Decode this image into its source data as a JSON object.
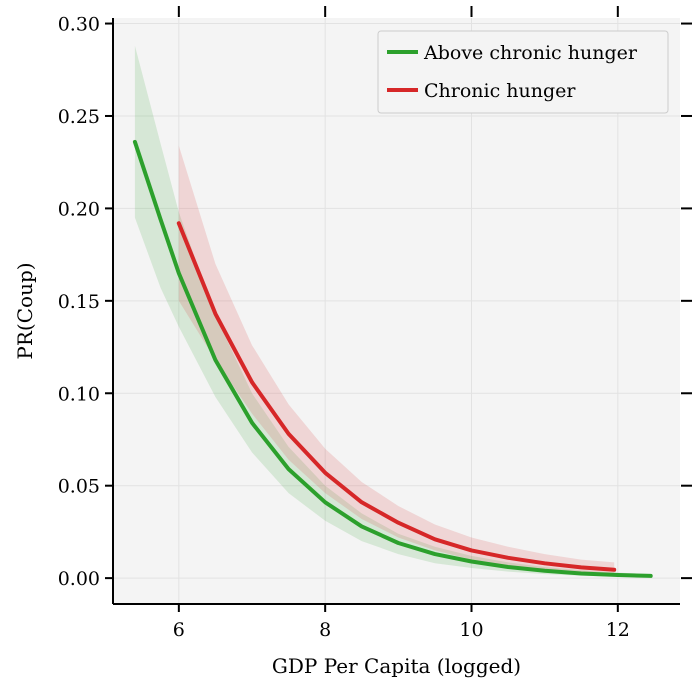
{
  "chart_data": {
    "type": "line",
    "xlabel": "GDP Per Capita (logged)",
    "ylabel": "PR(Coup)",
    "xlim": [
      5.1,
      12.85
    ],
    "ylim": [
      -0.014,
      0.303
    ],
    "xticks": [
      6,
      8,
      10,
      12
    ],
    "yticks": [
      0.0,
      0.05,
      0.1,
      0.15,
      0.2,
      0.25,
      0.3
    ],
    "xtick_labels": [
      "6",
      "8",
      "10",
      "12"
    ],
    "ytick_labels": [
      "0.00",
      "0.05",
      "0.10",
      "0.15",
      "0.20",
      "0.25",
      "0.30"
    ],
    "grid": true,
    "legend_position": "upper-right",
    "series": [
      {
        "name": "Above chronic hunger",
        "color": "#2ca02c",
        "x": [
          5.4,
          5.75,
          6.0,
          6.5,
          7.0,
          7.5,
          8.0,
          8.5,
          9.0,
          9.5,
          10.0,
          10.5,
          11.0,
          11.5,
          12.0,
          12.45
        ],
        "y": [
          0.236,
          0.194,
          0.165,
          0.118,
          0.084,
          0.059,
          0.041,
          0.028,
          0.019,
          0.013,
          0.009,
          0.006,
          0.004,
          0.0025,
          0.0017,
          0.0012
        ],
        "lower": [
          0.195,
          0.157,
          0.136,
          0.098,
          0.068,
          0.046,
          0.031,
          0.02,
          0.013,
          0.008,
          0.0055,
          0.0035,
          0.0022,
          0.0013,
          0.0008,
          0.0005
        ],
        "upper": [
          0.288,
          0.235,
          0.198,
          0.142,
          0.1,
          0.071,
          0.05,
          0.035,
          0.024,
          0.017,
          0.012,
          0.0085,
          0.006,
          0.0042,
          0.003,
          0.0022
        ]
      },
      {
        "name": "Chronic hunger",
        "color": "#d62728",
        "x": [
          6.0,
          6.5,
          7.0,
          7.5,
          8.0,
          8.5,
          9.0,
          9.5,
          10.0,
          10.5,
          11.0,
          11.5,
          11.95
        ],
        "y": [
          0.192,
          0.143,
          0.106,
          0.078,
          0.057,
          0.041,
          0.03,
          0.021,
          0.015,
          0.011,
          0.008,
          0.0058,
          0.0045
        ],
        "lower": [
          0.15,
          0.118,
          0.089,
          0.064,
          0.046,
          0.032,
          0.022,
          0.015,
          0.01,
          0.007,
          0.0045,
          0.003,
          0.002
        ],
        "upper": [
          0.234,
          0.17,
          0.126,
          0.094,
          0.07,
          0.052,
          0.039,
          0.029,
          0.022,
          0.017,
          0.013,
          0.01,
          0.0085
        ]
      }
    ]
  }
}
